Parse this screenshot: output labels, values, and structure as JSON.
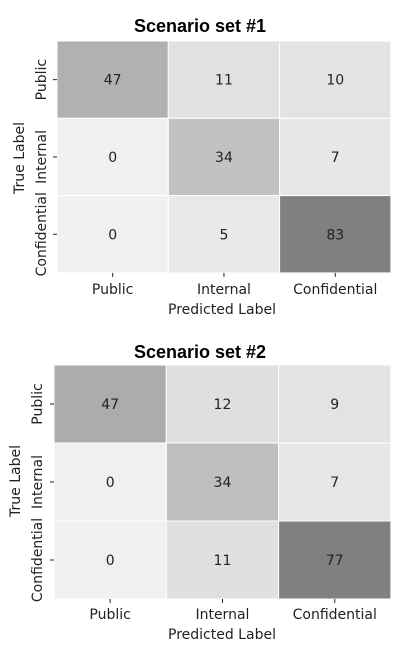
{
  "chart_data": [
    {
      "type": "heatmap",
      "title": "Scenario set #1",
      "xlabel": "Predicted Label",
      "ylabel": "True Label",
      "x_categories": [
        "Public",
        "Internal",
        "Confidential"
      ],
      "y_categories": [
        "Public",
        "Internal",
        "Confidential"
      ],
      "values": [
        [
          47,
          11,
          10
        ],
        [
          0,
          34,
          7
        ],
        [
          0,
          5,
          83
        ]
      ],
      "colormap": "greys",
      "grid": false,
      "colorbar": false
    },
    {
      "type": "heatmap",
      "title": "Scenario set #2",
      "xlabel": "Predicted Label",
      "ylabel": "True Label",
      "x_categories": [
        "Public",
        "Internal",
        "Confidential"
      ],
      "y_categories": [
        "Public",
        "Internal",
        "Confidential"
      ],
      "values": [
        [
          47,
          12,
          9
        ],
        [
          0,
          34,
          7
        ],
        [
          0,
          11,
          77
        ]
      ],
      "colormap": "greys",
      "grid": false,
      "colorbar": false
    }
  ]
}
